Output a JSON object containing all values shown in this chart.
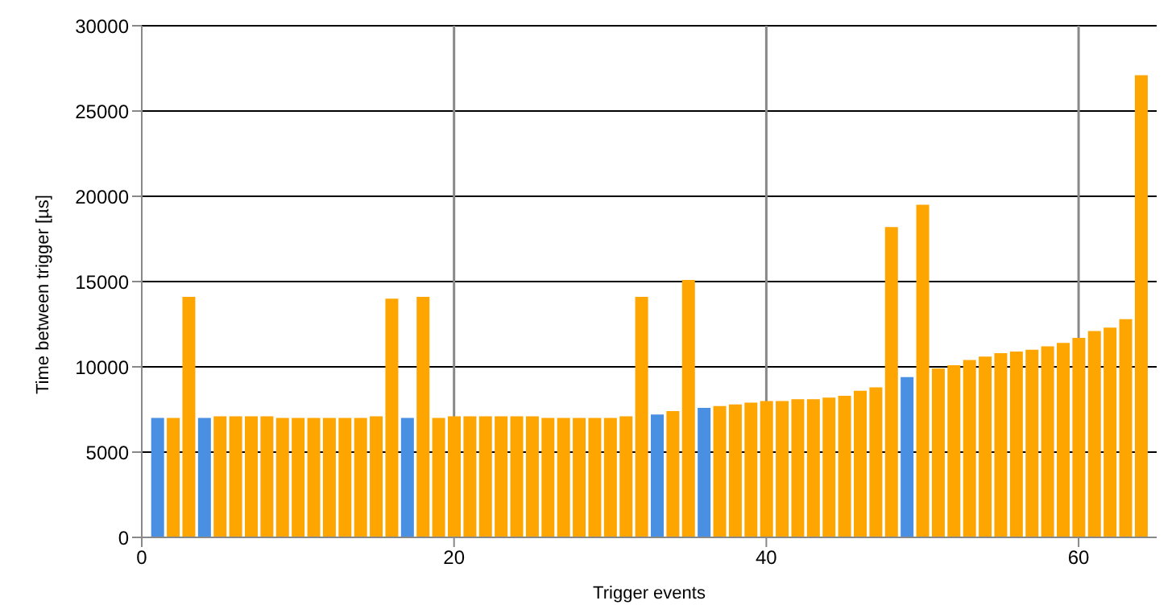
{
  "chart_data": {
    "type": "bar",
    "xlabel": "Trigger events",
    "ylabel": "Time between trigger [µs]",
    "x": [
      1,
      2,
      3,
      4,
      5,
      6,
      7,
      8,
      9,
      10,
      11,
      12,
      13,
      14,
      15,
      16,
      17,
      18,
      19,
      20,
      21,
      22,
      23,
      24,
      25,
      26,
      27,
      28,
      29,
      30,
      31,
      32,
      33,
      34,
      35,
      36,
      37,
      38,
      39,
      40,
      41,
      42,
      43,
      44,
      45,
      46,
      47,
      48,
      49,
      50,
      51,
      52,
      53,
      54,
      55,
      56,
      57,
      58,
      59,
      60,
      61,
      62,
      63,
      64
    ],
    "values": [
      7000,
      7000,
      14100,
      7000,
      7100,
      7100,
      7100,
      7100,
      7000,
      7000,
      7000,
      7000,
      7000,
      7000,
      7100,
      14000,
      7000,
      14100,
      7000,
      7100,
      7100,
      7100,
      7100,
      7100,
      7100,
      7000,
      7000,
      7000,
      7000,
      7000,
      7100,
      14100,
      7200,
      7400,
      15100,
      7600,
      7700,
      7800,
      7900,
      8000,
      8000,
      8100,
      8100,
      8200,
      8300,
      8600,
      8800,
      18200,
      9400,
      19500,
      9900,
      10100,
      10400,
      10600,
      10800,
      10900,
      11000,
      11200,
      11400,
      11700,
      12100,
      12300,
      12800,
      27100
    ],
    "colors": [
      "#4a90e2",
      "#ffa500",
      "#ffa500",
      "#4a90e2",
      "#ffa500",
      "#ffa500",
      "#ffa500",
      "#ffa500",
      "#ffa500",
      "#ffa500",
      "#ffa500",
      "#ffa500",
      "#ffa500",
      "#ffa500",
      "#ffa500",
      "#ffa500",
      "#4a90e2",
      "#ffa500",
      "#ffa500",
      "#ffa500",
      "#ffa500",
      "#ffa500",
      "#ffa500",
      "#ffa500",
      "#ffa500",
      "#ffa500",
      "#ffa500",
      "#ffa500",
      "#ffa500",
      "#ffa500",
      "#ffa500",
      "#ffa500",
      "#4a90e2",
      "#ffa500",
      "#ffa500",
      "#4a90e2",
      "#ffa500",
      "#ffa500",
      "#ffa500",
      "#ffa500",
      "#ffa500",
      "#ffa500",
      "#ffa500",
      "#ffa500",
      "#ffa500",
      "#ffa500",
      "#ffa500",
      "#ffa500",
      "#4a90e2",
      "#ffa500",
      "#ffa500",
      "#ffa500",
      "#ffa500",
      "#ffa500",
      "#ffa500",
      "#ffa500",
      "#ffa500",
      "#ffa500",
      "#ffa500",
      "#ffa500",
      "#ffa500",
      "#ffa500",
      "#ffa500",
      "#ffa500"
    ],
    "xlim": [
      0,
      65
    ],
    "xticks": [
      0,
      20,
      40,
      60
    ],
    "ylim": [
      0,
      30000
    ],
    "yticks": [
      0,
      5000,
      10000,
      15000,
      20000,
      25000,
      30000
    ],
    "grid": true
  }
}
